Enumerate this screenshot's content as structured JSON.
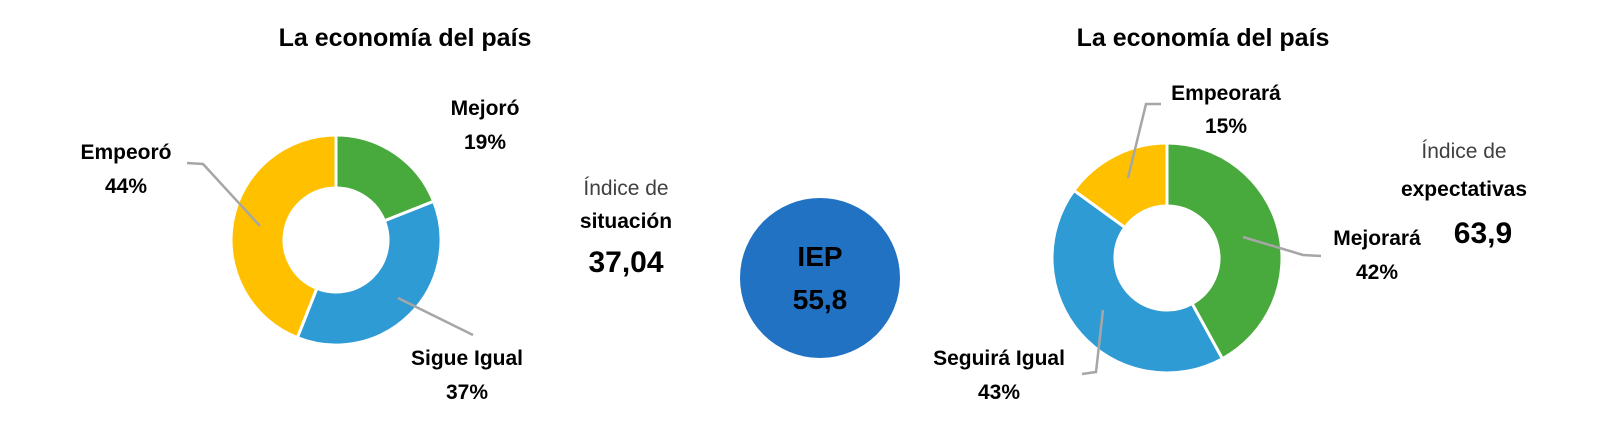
{
  "chart_data": [
    {
      "type": "pie",
      "subtype": "donut",
      "title": "La economía del país",
      "categories": [
        "Mejoró",
        "Sigue Igual",
        "Empeoró"
      ],
      "values": [
        19,
        37,
        44
      ],
      "labels": [
        "19%",
        "37%",
        "44%"
      ],
      "colors": [
        "#48A93C",
        "#2E9BD4",
        "#FFC000"
      ],
      "start_angle_deg": 0,
      "direction": "clockwise",
      "legend": "none",
      "index": {
        "line1": "Índice de",
        "line2": "situación",
        "value": "37,04"
      }
    },
    {
      "type": "pie",
      "subtype": "donut",
      "title": "La economía del país",
      "categories": [
        "Mejorará",
        "Seguirá Igual",
        "Empeorará"
      ],
      "values": [
        42,
        43,
        15
      ],
      "labels": [
        "42%",
        "43%",
        "15%"
      ],
      "colors": [
        "#48A93C",
        "#2E9BD4",
        "#FFC000"
      ],
      "start_angle_deg": 0,
      "direction": "clockwise",
      "legend": "none",
      "index": {
        "line1": "Índice de",
        "line2": "expectativas",
        "value": "63,9"
      }
    }
  ],
  "center_badge": {
    "label": "IEP",
    "value": "55,8",
    "color": "#2272C4"
  },
  "style": {
    "leader_line_color": "#A6A6A6"
  }
}
